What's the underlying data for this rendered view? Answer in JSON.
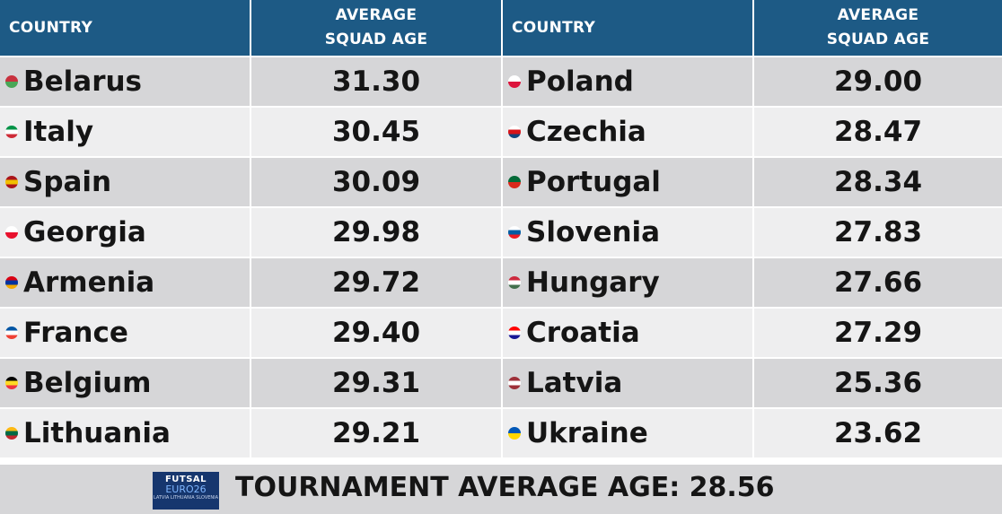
{
  "chart_data": {
    "type": "table",
    "columns": [
      "COUNTRY",
      "AVERAGE SQUAD AGE",
      "COUNTRY",
      "AVERAGE SQUAD AGE"
    ],
    "header": {
      "country_label": "COUNTRY",
      "age_line1": "AVERAGE",
      "age_line2": "SQUAD AGE"
    },
    "rows": [
      {
        "left": {
          "country": "Belarus",
          "age": "31.30",
          "flag": [
            "#c8313e",
            "#4aa657"
          ]
        },
        "right": {
          "country": "Poland",
          "age": "29.00",
          "flag": [
            "#ffffff",
            "#dc143c"
          ]
        }
      },
      {
        "left": {
          "country": "Italy",
          "age": "30.45",
          "flag": [
            "#009246",
            "#ffffff",
            "#ce2b37"
          ]
        },
        "right": {
          "country": "Czechia",
          "age": "28.47",
          "flag": [
            "#ffffff",
            "#d7141a",
            "#11457e"
          ]
        }
      },
      {
        "left": {
          "country": "Spain",
          "age": "30.09",
          "flag": [
            "#aa151b",
            "#f1bf00",
            "#aa151b"
          ]
        },
        "right": {
          "country": "Portugal",
          "age": "28.34",
          "flag": [
            "#046a38",
            "#da291c"
          ]
        }
      },
      {
        "left": {
          "country": "Georgia",
          "age": "29.98",
          "flag": [
            "#ffffff",
            "#e8112d"
          ]
        },
        "right": {
          "country": "Slovenia",
          "age": "27.83",
          "flag": [
            "#ffffff",
            "#005da4",
            "#ed1c24"
          ]
        }
      },
      {
        "left": {
          "country": "Armenia",
          "age": "29.72",
          "flag": [
            "#d90012",
            "#0033a0",
            "#f2a800"
          ]
        },
        "right": {
          "country": "Hungary",
          "age": "27.66",
          "flag": [
            "#cd2a3e",
            "#ffffff",
            "#436f4d"
          ]
        }
      },
      {
        "left": {
          "country": "France",
          "age": "29.40",
          "flag": [
            "#0055a4",
            "#ffffff",
            "#ef4135"
          ]
        },
        "right": {
          "country": "Croatia",
          "age": "27.29",
          "flag": [
            "#ff0000",
            "#ffffff",
            "#171796"
          ]
        }
      },
      {
        "left": {
          "country": "Belgium",
          "age": "29.31",
          "flag": [
            "#000000",
            "#fdda24",
            "#ef3340"
          ]
        },
        "right": {
          "country": "Latvia",
          "age": "25.36",
          "flag": [
            "#9e3039",
            "#ffffff",
            "#9e3039"
          ]
        }
      },
      {
        "left": {
          "country": "Lithuania",
          "age": "29.21",
          "flag": [
            "#fdb913",
            "#006a44",
            "#c1272d"
          ]
        },
        "right": {
          "country": "Ukraine",
          "age": "23.62",
          "flag": [
            "#0057b7",
            "#ffd700"
          ]
        }
      }
    ],
    "footer": {
      "label": "TOURNAMENT AVERAGE AGE: 28.56",
      "logo_line1": "FUTSAL",
      "logo_line2": "EURO26",
      "logo_line3": "LATVIA LITHUANIA SLOVENIA"
    }
  },
  "colors": {
    "header_bg": "#1d5a85",
    "row_dark": "#d6d6d8",
    "row_light": "#eeeeef",
    "logo_bg": "#16366e"
  }
}
